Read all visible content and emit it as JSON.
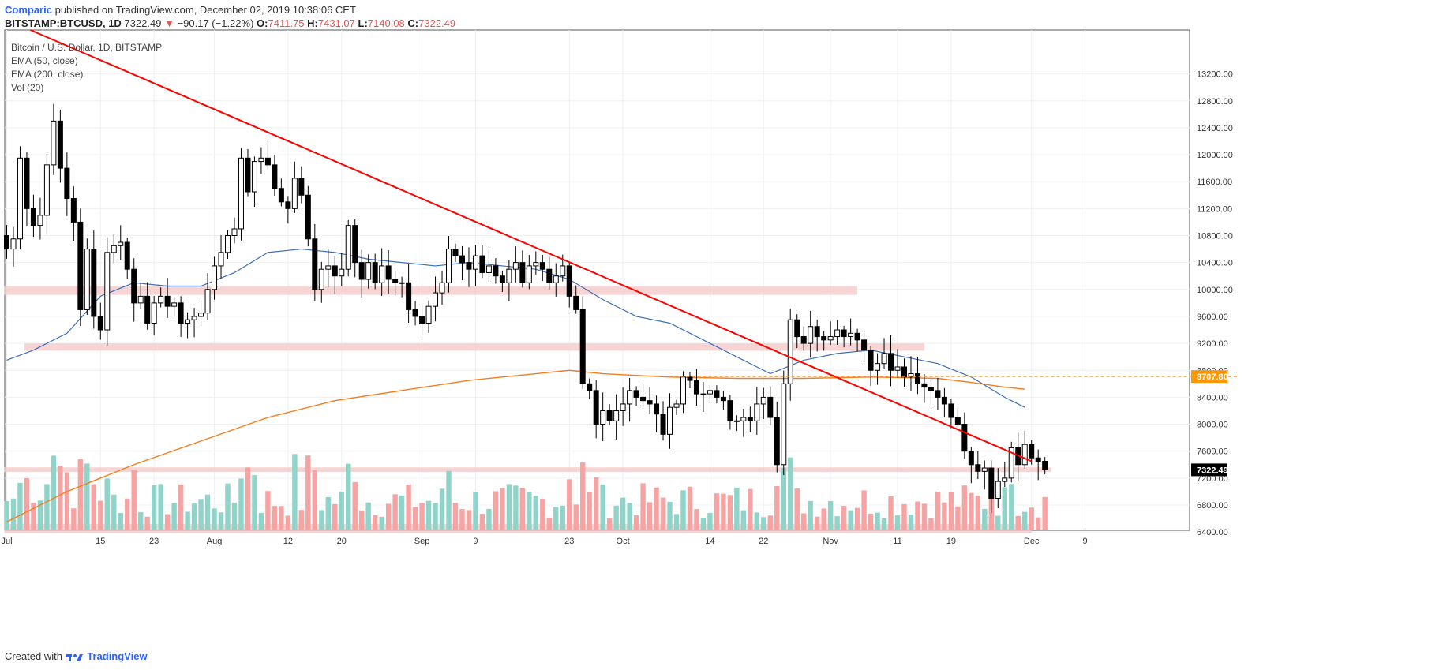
{
  "header": {
    "publisher": "Comparic",
    "published_text": "published on TradingView.com, December 02, 2019 10:38:06 CET",
    "symbol": "BITSTAMP:BTCUSD, 1D",
    "last": "7322.49",
    "change_arrow": "▼",
    "change": "−90.17 (−1.22%)",
    "o_label": "O:",
    "o": "7411.75",
    "h_label": "H:",
    "h": "7431.07",
    "l_label": "L:",
    "l": "7140.08",
    "c_label": "C:",
    "c": "7322.49"
  },
  "legend": {
    "title": "Bitcoin / U.S. Dollar, 1D, BITSTAMP",
    "ema50": "EMA (50, close)",
    "ema200": "EMA (200, close)",
    "vol": "Vol (20)"
  },
  "footer": {
    "created_with": "Created with",
    "brand": "TradingView"
  },
  "colors": {
    "up": "#ffffff",
    "down": "#000000",
    "trendline": "#ff0000",
    "ema50": "#3d6fb6",
    "ema200": "#f57c1f",
    "level": "#ff9800",
    "zone": "#f4c7c7",
    "vol_up": "#8fd3c9",
    "vol_down": "#f6a3a3"
  },
  "chart_data": {
    "type": "candlestick",
    "title": "Bitcoin / U.S. Dollar, 1D, BITSTAMP",
    "ylim": [
      6050,
      13600
    ],
    "y_ticks": [
      6400,
      6800,
      7200,
      7600,
      8000,
      8400,
      8800,
      9200,
      9600,
      10000,
      10400,
      10800,
      11200,
      11600,
      12000,
      12400,
      12800,
      13200
    ],
    "y_tick_labels": [
      "6400.00",
      "6800.00",
      "7200.00",
      "7600.00",
      "8000.00",
      "8400.00",
      "8800.00",
      "9200.00",
      "9600.00",
      "10000.00",
      "10400.00",
      "10800.00",
      "11200.00",
      "11600.00",
      "12000.00",
      "12400.00",
      "12800.00",
      "13200.00"
    ],
    "x_ticks": [
      {
        "day": 1,
        "label": "Jul"
      },
      {
        "day": 15,
        "label": "15"
      },
      {
        "day": 23,
        "label": "23"
      },
      {
        "day": 32,
        "label": "Aug"
      },
      {
        "day": 43,
        "label": "12"
      },
      {
        "day": 51,
        "label": "20"
      },
      {
        "day": 63,
        "label": "Sep"
      },
      {
        "day": 71,
        "label": "9"
      },
      {
        "day": 85,
        "label": "23"
      },
      {
        "day": 93,
        "label": "Oct"
      },
      {
        "day": 106,
        "label": "14"
      },
      {
        "day": 114,
        "label": "22"
      },
      {
        "day": 124,
        "label": "Nov"
      },
      {
        "day": 134,
        "label": "11"
      },
      {
        "day": 142,
        "label": "19"
      },
      {
        "day": 154,
        "label": "Dec"
      },
      {
        "day": 162,
        "label": "9"
      }
    ],
    "closes": [
      10600,
      10750,
      11950,
      11200,
      10950,
      11100,
      11850,
      12500,
      11800,
      11350,
      11000,
      9700,
      10600,
      9600,
      9400,
      10550,
      10650,
      10700,
      10300,
      9800,
      9900,
      9500,
      9800,
      9900,
      9750,
      9800,
      9500,
      9550,
      9600,
      9650,
      10000,
      10350,
      10550,
      10800,
      10900,
      11950,
      11450,
      11900,
      11950,
      11850,
      11500,
      11300,
      11200,
      11650,
      11400,
      10750,
      10000,
      10300,
      10350,
      10200,
      10300,
      10950,
      10400,
      10150,
      10400,
      10100,
      10350,
      10150,
      10100,
      10100,
      9700,
      9600,
      9500,
      9750,
      9950,
      10100,
      10600,
      10500,
      10400,
      10300,
      10500,
      10250,
      10350,
      10200,
      10100,
      10300,
      10400,
      10100,
      10350,
      10400,
      10300,
      10100,
      10200,
      10350,
      9900,
      9700,
      8600,
      8500,
      8000,
      8200,
      8050,
      8200,
      8300,
      8500,
      8400,
      8350,
      8300,
      8150,
      7850,
      8250,
      8300,
      8700,
      8650,
      8450,
      8450,
      8500,
      8400,
      8350,
      8050,
      8050,
      8100,
      8050,
      8300,
      8400,
      8100,
      7400,
      8600,
      9550,
      9300,
      9200,
      9450,
      9300,
      9250,
      9300,
      9400,
      9300,
      9350,
      9250,
      9100,
      8800,
      8900,
      9050,
      8800,
      8850,
      8700,
      8750,
      8600,
      8550,
      8500,
      8400,
      8300,
      8100,
      8000,
      7600,
      7400,
      7300,
      7350,
      6900,
      7150,
      7200,
      7650,
      7400,
      7700,
      7500,
      7450,
      7322
    ],
    "volume_note": "volume shown as bars in lower pane",
    "ema50_points": [
      [
        1,
        8950
      ],
      [
        5,
        9100
      ],
      [
        10,
        9350
      ],
      [
        15,
        9900
      ],
      [
        20,
        10100
      ],
      [
        25,
        10050
      ],
      [
        30,
        10050
      ],
      [
        35,
        10250
      ],
      [
        40,
        10550
      ],
      [
        45,
        10600
      ],
      [
        50,
        10550
      ],
      [
        55,
        10450
      ],
      [
        60,
        10400
      ],
      [
        65,
        10350
      ],
      [
        70,
        10400
      ],
      [
        75,
        10350
      ],
      [
        80,
        10300
      ],
      [
        85,
        10150
      ],
      [
        90,
        9850
      ],
      [
        95,
        9600
      ],
      [
        100,
        9500
      ],
      [
        105,
        9250
      ],
      [
        110,
        9000
      ],
      [
        115,
        8750
      ],
      [
        120,
        8950
      ],
      [
        125,
        9050
      ],
      [
        130,
        9100
      ],
      [
        135,
        9000
      ],
      [
        140,
        8900
      ],
      [
        145,
        8700
      ],
      [
        150,
        8400
      ],
      [
        153,
        8250
      ]
    ],
    "ema200_points": [
      [
        1,
        6550
      ],
      [
        10,
        7000
      ],
      [
        20,
        7400
      ],
      [
        30,
        7750
      ],
      [
        40,
        8100
      ],
      [
        50,
        8350
      ],
      [
        60,
        8500
      ],
      [
        70,
        8650
      ],
      [
        80,
        8750
      ],
      [
        85,
        8800
      ],
      [
        90,
        8750
      ],
      [
        100,
        8700
      ],
      [
        110,
        8680
      ],
      [
        120,
        8680
      ],
      [
        130,
        8700
      ],
      [
        140,
        8680
      ],
      [
        145,
        8620
      ],
      [
        150,
        8550
      ],
      [
        153,
        8520
      ]
    ],
    "trendline": [
      [
        1,
        13600
      ],
      [
        154,
        7450
      ]
    ],
    "horizontal_level": {
      "value": 8707.8,
      "label": "8707.80",
      "start_day": 100
    },
    "last_price_label": "7322.49",
    "zones": [
      {
        "from_day": 1,
        "to_day": 128,
        "y_low": 9920,
        "y_high": 10050
      },
      {
        "from_day": 4,
        "to_day": 138,
        "y_low": 9090,
        "y_high": 9200
      },
      {
        "from_day": 1,
        "to_day": 157,
        "y_low": 7290,
        "y_high": 7360
      },
      {
        "from_day": 1,
        "to_day": 154,
        "y_low": 6380,
        "y_high": 6520
      }
    ]
  }
}
